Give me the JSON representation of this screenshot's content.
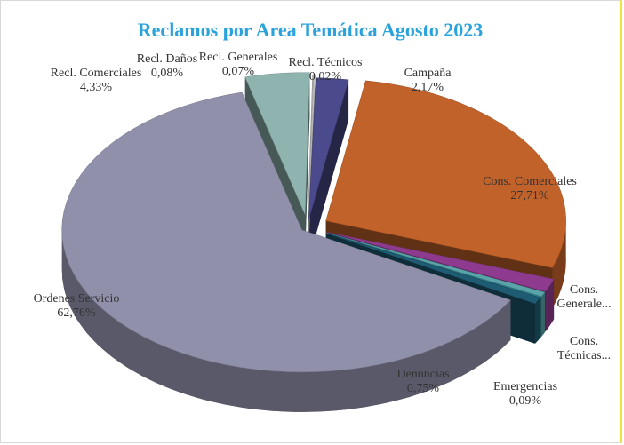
{
  "chart_data": {
    "type": "pie",
    "title": "Reclamos por Area Temática Agosto 2023",
    "categories": [
      "Campaña",
      "Cons. Comerciales",
      "Cons. Generale...",
      "Cons. Técnicas...",
      "Emergencias",
      "Denuncias",
      "Ordenes Servicio",
      "Recl. Comerciales",
      "Recl. Daños",
      "Recl. Generales",
      "Recl. Técnicos"
    ],
    "values": [
      2.17,
      27.71,
      1.5,
      0.52,
      0.09,
      0.75,
      62.76,
      4.33,
      0.08,
      0.07,
      0.02
    ],
    "value_labels": [
      "2,17%",
      "27,71%",
      null,
      null,
      "0,09%",
      "0,75%",
      "62,76%",
      "4,33%",
      "0,08%",
      "0,07%",
      "0,02%"
    ],
    "colors": [
      "#4b4a8c",
      "#c2622b",
      "#8e3b8f",
      "#5aa3a8",
      "#2f8a95",
      "#1f5b72",
      "#9090aa",
      "#8fb3ae",
      "#b0b0b0",
      "#cfcfcf",
      "#e4e4e4"
    ]
  }
}
